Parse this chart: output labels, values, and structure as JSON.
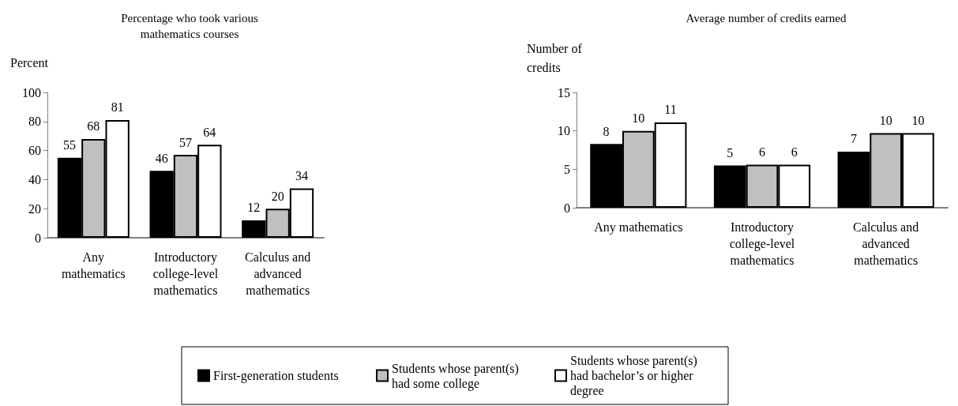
{
  "chart_data": [
    {
      "type": "bar",
      "title": "Percentage who took various\nmathematics courses",
      "ylabel": "Percent",
      "categories": [
        "Any\nmathematics",
        "Introductory\ncollege-level\nmathematics",
        "Calculus and\nadvanced\nmathematics"
      ],
      "series": [
        {
          "name": "First-generation students",
          "color": "#000000",
          "values": [
            55,
            46,
            12
          ]
        },
        {
          "name": "Students whose parent(s) had some college",
          "color": "#c0c0c0",
          "values": [
            68,
            57,
            20
          ]
        },
        {
          "name": "Students whose parent(s) had bachelor’s or higher degree",
          "color": "#ffffff",
          "values": [
            81,
            64,
            34
          ]
        }
      ],
      "ylim": [
        0,
        100
      ],
      "yticks": [
        0,
        20,
        40,
        60,
        80,
        100
      ],
      "grid": false,
      "legend": "bottom",
      "data_labels": true
    },
    {
      "type": "bar",
      "title": "Average number of credits earned",
      "ylabel": "Number of\ncredits",
      "categories": [
        "Any mathematics",
        "Introductory\ncollege-level\nmathematics",
        "Calculus and\nadvanced\nmathematics"
      ],
      "series": [
        {
          "color": "#000000",
          "values": [
            8.3,
            5.5,
            7.3
          ],
          "value_labels": [
            "8",
            "5",
            "7"
          ]
        },
        {
          "color": "#c0c0c0",
          "values": [
            10.0,
            5.6,
            9.7
          ],
          "value_labels": [
            "10",
            "6",
            "10"
          ]
        },
        {
          "color": "#ffffff",
          "values": [
            11.1,
            5.6,
            9.7
          ],
          "value_labels": [
            "11",
            "6",
            "10"
          ]
        }
      ],
      "ylim": [
        0,
        15
      ],
      "yticks": [
        0,
        5,
        10,
        15
      ],
      "grid": false,
      "legend": false
    }
  ]
}
